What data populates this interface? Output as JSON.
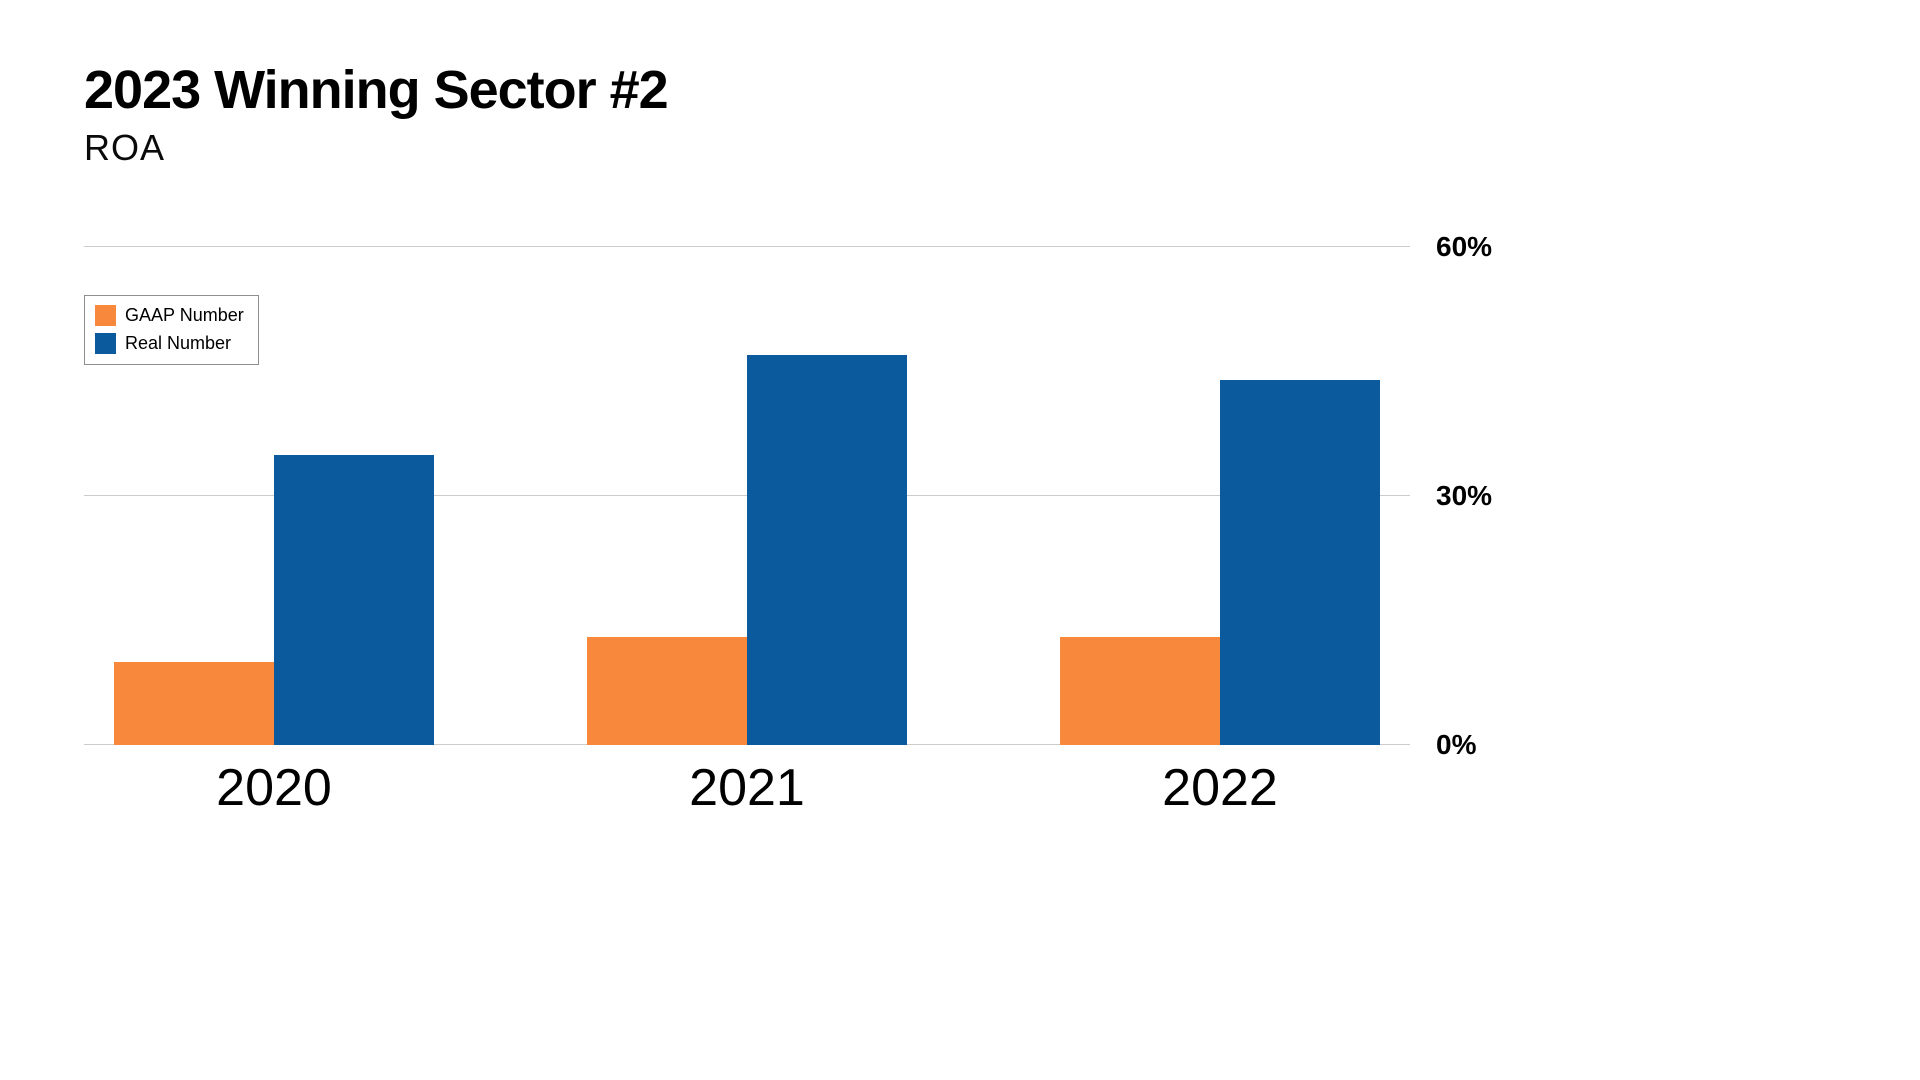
{
  "header": {
    "title": "2023 Winning Sector #2",
    "subtitle": "ROA"
  },
  "colors": {
    "gaap": "#F7883C",
    "real": "#0B5A9D",
    "gridline": "#CCCCCC",
    "text": "#000000",
    "background": "#FFFFFF"
  },
  "chart_data": {
    "type": "bar",
    "title": "2023 Winning Sector #2",
    "subtitle": "ROA",
    "categories": [
      "2020",
      "2021",
      "2022"
    ],
    "series": [
      {
        "name": "GAAP Number",
        "color": "#F7883C",
        "values": [
          10,
          13,
          13
        ]
      },
      {
        "name": "Real Number",
        "color": "#0B5A9D",
        "values": [
          35,
          47,
          44
        ]
      }
    ],
    "xlabel": "",
    "ylabel": "",
    "ylim": [
      0,
      60
    ],
    "ytick_values": [
      0,
      30,
      60
    ],
    "yticks": [
      "0%",
      "30%",
      "60%"
    ],
    "ytick_side": "right",
    "grid": true,
    "legend_position": "top-left",
    "legend": [
      "GAAP Number",
      "Real Number"
    ]
  }
}
